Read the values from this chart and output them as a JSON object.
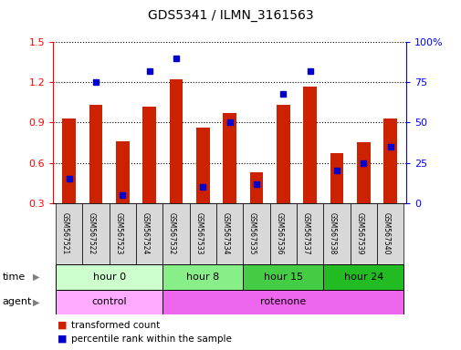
{
  "title": "GDS5341 / ILMN_3161563",
  "samples": [
    "GSM567521",
    "GSM567522",
    "GSM567523",
    "GSM567524",
    "GSM567532",
    "GSM567533",
    "GSM567534",
    "GSM567535",
    "GSM567536",
    "GSM567537",
    "GSM567538",
    "GSM567539",
    "GSM567540"
  ],
  "red_values": [
    0.93,
    1.03,
    0.76,
    1.02,
    1.22,
    0.86,
    0.97,
    0.53,
    1.03,
    1.17,
    0.67,
    0.75,
    0.93
  ],
  "blue_values": [
    15,
    75,
    5,
    82,
    90,
    10,
    50,
    12,
    68,
    82,
    20,
    25,
    35
  ],
  "ylim_left": [
    0.3,
    1.5
  ],
  "ylim_right": [
    0,
    100
  ],
  "yticks_left": [
    0.3,
    0.6,
    0.9,
    1.2,
    1.5
  ],
  "yticks_right": [
    0,
    25,
    50,
    75,
    100
  ],
  "ytick_labels_right": [
    "0",
    "25",
    "50",
    "75",
    "100%"
  ],
  "bar_color": "#cc2200",
  "dot_color": "#0000cc",
  "bar_width": 0.5,
  "groups": [
    {
      "label": "hour 0",
      "start": 0,
      "end": 3,
      "color": "#ccffcc"
    },
    {
      "label": "hour 8",
      "start": 4,
      "end": 6,
      "color": "#88ee88"
    },
    {
      "label": "hour 15",
      "start": 7,
      "end": 9,
      "color": "#44cc44"
    },
    {
      "label": "hour 24",
      "start": 10,
      "end": 12,
      "color": "#22bb22"
    }
  ],
  "agents": [
    {
      "label": "control",
      "start": 0,
      "end": 3,
      "color": "#ffaaff"
    },
    {
      "label": "rotenone",
      "start": 4,
      "end": 12,
      "color": "#ee66ee"
    }
  ],
  "time_label": "time",
  "agent_label": "agent",
  "legend_red": "transformed count",
  "legend_blue": "percentile rank within the sample"
}
